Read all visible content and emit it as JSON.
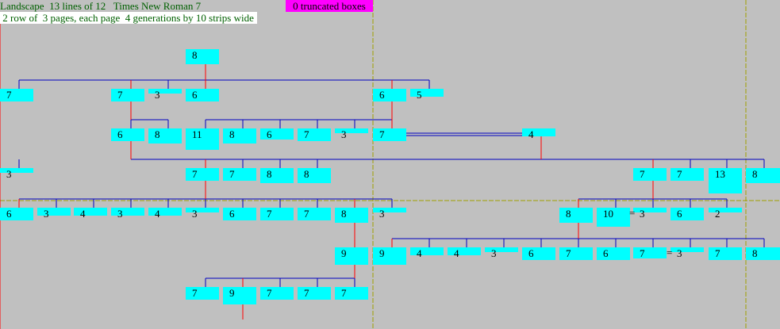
{
  "header": {
    "line1": "Landscape  13 lines of 12   Times New Roman 7",
    "line2": " 2 row of  3 pages, each page  4 generations by 10 strips wide",
    "truncated": "0 truncated boxes"
  },
  "colors": {
    "background": "#c0c0c0",
    "box": "#00ffff",
    "connector": "#0000c0",
    "descent": "#ff0000",
    "page_break": "#a0a000"
  },
  "boxes": [
    {
      "id": "b0",
      "label": "8"
    },
    {
      "id": "b1",
      "label": "7"
    },
    {
      "id": "b2",
      "label": "7"
    },
    {
      "id": "b3",
      "label": "3"
    },
    {
      "id": "b4",
      "label": "6"
    },
    {
      "id": "b5",
      "label": "6"
    },
    {
      "id": "b6",
      "label": "5"
    },
    {
      "id": "b7",
      "label": "6"
    },
    {
      "id": "b8",
      "label": "8"
    },
    {
      "id": "b9",
      "label": "11"
    },
    {
      "id": "b10",
      "label": "8"
    },
    {
      "id": "b11",
      "label": "6"
    },
    {
      "id": "b12",
      "label": "7"
    },
    {
      "id": "b13",
      "label": "3"
    },
    {
      "id": "b14",
      "label": "7"
    },
    {
      "id": "b15",
      "label": "4"
    },
    {
      "id": "b16",
      "label": "3"
    },
    {
      "id": "b17",
      "label": "7"
    },
    {
      "id": "b18",
      "label": "7"
    },
    {
      "id": "b19",
      "label": "8"
    },
    {
      "id": "b20",
      "label": "8"
    },
    {
      "id": "b21",
      "label": "7"
    },
    {
      "id": "b22",
      "label": "7"
    },
    {
      "id": "b23",
      "label": "13"
    },
    {
      "id": "b24",
      "label": "8"
    },
    {
      "id": "b25",
      "label": "6"
    },
    {
      "id": "b26",
      "label": "3"
    },
    {
      "id": "b27",
      "label": "4"
    },
    {
      "id": "b28",
      "label": "3"
    },
    {
      "id": "b29",
      "label": "4"
    },
    {
      "id": "b30",
      "label": "3"
    },
    {
      "id": "b31",
      "label": "6"
    },
    {
      "id": "b32",
      "label": "7"
    },
    {
      "id": "b33",
      "label": "7"
    },
    {
      "id": "b34",
      "label": "8"
    },
    {
      "id": "b35",
      "label": "3"
    },
    {
      "id": "b36",
      "label": "8"
    },
    {
      "id": "b37",
      "label": "10"
    },
    {
      "id": "b38",
      "label": "3"
    },
    {
      "id": "b39",
      "label": "6"
    },
    {
      "id": "b40",
      "label": "2"
    },
    {
      "id": "b41",
      "label": "9"
    },
    {
      "id": "b42",
      "label": "9"
    },
    {
      "id": "b43",
      "label": "4"
    },
    {
      "id": "b44",
      "label": "4"
    },
    {
      "id": "b45",
      "label": "3"
    },
    {
      "id": "b46",
      "label": "6"
    },
    {
      "id": "b47",
      "label": "7"
    },
    {
      "id": "b48",
      "label": "6"
    },
    {
      "id": "b49",
      "label": "7"
    },
    {
      "id": "b50",
      "label": "3"
    },
    {
      "id": "b51",
      "label": "7"
    },
    {
      "id": "b52",
      "label": "8"
    },
    {
      "id": "b53",
      "label": "7"
    },
    {
      "id": "b54",
      "label": "9"
    },
    {
      "id": "b55",
      "label": "7"
    },
    {
      "id": "b56",
      "label": "7"
    },
    {
      "id": "b57",
      "label": "7"
    }
  ],
  "equals_marks": [
    "=",
    "="
  ]
}
